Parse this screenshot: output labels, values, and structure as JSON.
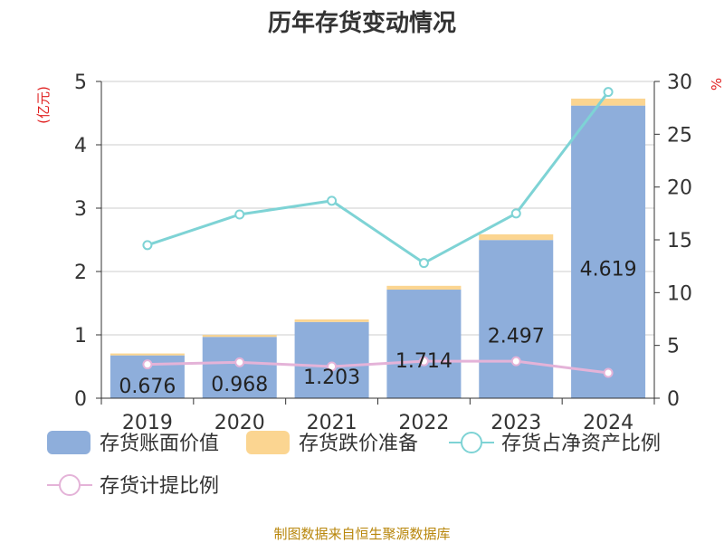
{
  "title": "历年存货变动情况",
  "source": "制图数据来自恒生聚源数据库",
  "colors": {
    "book_value": "#8eaedb",
    "impairment": "#fbd591",
    "net_asset_ratio": "#7ed3d5",
    "provision_ratio": "#e4b3d8",
    "unit_text": "#e02020",
    "source_text": "#b8860b"
  },
  "chart_data": {
    "type": "bar",
    "title": "历年存货变动情况",
    "categories": [
      "2019",
      "2020",
      "2021",
      "2022",
      "2023",
      "2024"
    ],
    "y_left": {
      "unit": "(亿元)",
      "min": 0,
      "max": 5,
      "ticks": [
        "0",
        "1",
        "2",
        "3",
        "4",
        "5"
      ]
    },
    "y_right": {
      "unit": "%",
      "min": 0,
      "max": 30,
      "ticks": [
        "0",
        "5",
        "10",
        "15",
        "20",
        "25",
        "30"
      ]
    },
    "grid": true,
    "legend_position": "bottom",
    "series": [
      {
        "name": "存货账面价值",
        "kind": "bar",
        "axis": "left",
        "stack": "inv",
        "values": [
          0.676,
          0.968,
          1.203,
          1.714,
          2.497,
          4.619
        ],
        "labels": [
          "0.676",
          "0.968",
          "1.203",
          "1.714",
          "2.497",
          "4.619"
        ]
      },
      {
        "name": "存货跌价准备",
        "kind": "bar",
        "axis": "left",
        "stack": "inv",
        "values": [
          0.03,
          0.03,
          0.04,
          0.06,
          0.09,
          0.11
        ]
      },
      {
        "name": "存货占净资产比例",
        "kind": "line",
        "axis": "right",
        "values": [
          14.5,
          17.4,
          18.7,
          12.8,
          17.5,
          29.0
        ]
      },
      {
        "name": "存货计提比例",
        "kind": "line",
        "axis": "right",
        "values": [
          3.2,
          3.4,
          3.0,
          3.5,
          3.5,
          2.4
        ]
      }
    ]
  }
}
